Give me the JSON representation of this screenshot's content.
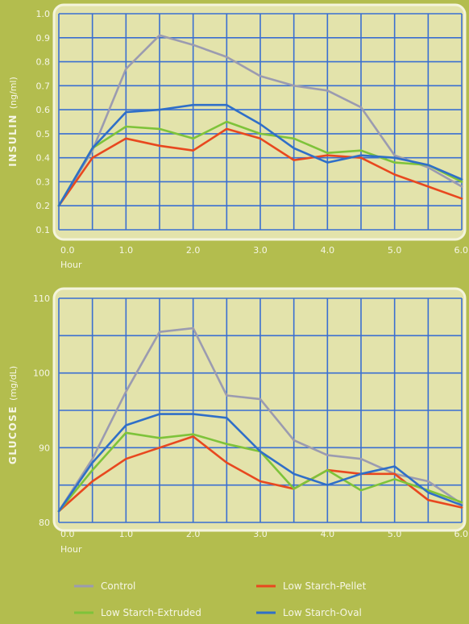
{
  "colors": {
    "background": "#b3bd4e",
    "plot_area": "#e3e3ab",
    "plot_border": "#f4f4dc",
    "grid": "#3a6fd1",
    "text": "#f6f6e6"
  },
  "x_ticks": [
    "0.0",
    "1.0",
    "2.0",
    "3.0",
    "4.0",
    "5.0",
    "6.0"
  ],
  "chart_data": [
    {
      "type": "line",
      "ylabel_bold": "INSULIN",
      "ylabel_unit": "(ng/ml)",
      "xlabel": "Hour",
      "xlim": [
        0,
        6
      ],
      "ylim": [
        0.1,
        1.0
      ],
      "y_ticks": [
        "0.1",
        "0.2",
        "0.3",
        "0.4",
        "0.5",
        "0.6",
        "0.7",
        "0.8",
        "0.9",
        "1.0"
      ],
      "x": [
        0,
        0.5,
        1,
        1.5,
        2,
        2.5,
        3,
        3.5,
        4,
        4.5,
        5,
        5.5,
        6
      ],
      "series": [
        {
          "name": "Control",
          "color": "#9b9bb0",
          "values": [
            0.2,
            0.43,
            0.77,
            0.91,
            0.87,
            0.82,
            0.74,
            0.7,
            0.68,
            0.61,
            0.41,
            0.36,
            0.28
          ]
        },
        {
          "name": "Low Starch-Pellet",
          "color": "#e8481f",
          "values": [
            0.2,
            0.4,
            0.48,
            0.45,
            0.43,
            0.52,
            0.48,
            0.39,
            0.41,
            0.4,
            0.33,
            0.28,
            0.23
          ]
        },
        {
          "name": "Low Starch-Extruded",
          "color": "#7ec33a",
          "values": [
            0.2,
            0.44,
            0.53,
            0.52,
            0.48,
            0.55,
            0.5,
            0.48,
            0.42,
            0.43,
            0.38,
            0.37,
            0.3
          ]
        },
        {
          "name": "Low Starch-Oval",
          "color": "#2f6fc8",
          "values": [
            0.2,
            0.44,
            0.59,
            0.6,
            0.62,
            0.62,
            0.54,
            0.44,
            0.38,
            0.41,
            0.4,
            0.37,
            0.31
          ]
        }
      ]
    },
    {
      "type": "line",
      "ylabel_bold": "GLUCOSE",
      "ylabel_unit": "(mg/dL)",
      "xlabel": "Hour",
      "xlim": [
        0,
        6
      ],
      "ylim": [
        80,
        110
      ],
      "y_ticks": [
        "80",
        "90",
        "100",
        "110"
      ],
      "x": [
        0,
        0.5,
        1,
        1.5,
        2,
        2.5,
        3,
        3.5,
        4,
        4.5,
        5,
        5.5,
        6
      ],
      "series": [
        {
          "name": "Control",
          "color": "#9b9bb0",
          "values": [
            81.5,
            88.5,
            97.5,
            105.5,
            106.0,
            97.0,
            96.5,
            91.0,
            89.0,
            88.5,
            86.5,
            85.5,
            82.5
          ]
        },
        {
          "name": "Low Starch-Pellet",
          "color": "#e8481f",
          "values": [
            81.5,
            85.5,
            88.5,
            90.0,
            91.5,
            88.0,
            85.5,
            84.5,
            87.0,
            86.5,
            86.5,
            83.0,
            82.0
          ]
        },
        {
          "name": "Low Starch-Extruded",
          "color": "#7ec33a",
          "values": [
            81.5,
            87.0,
            92.0,
            91.3,
            91.8,
            90.5,
            89.5,
            84.5,
            87.0,
            84.3,
            85.8,
            84.3,
            82.7
          ]
        },
        {
          "name": "Low Starch-Oval",
          "color": "#2f6fc8",
          "values": [
            81.5,
            88.0,
            93.0,
            94.5,
            94.5,
            94.0,
            89.5,
            86.5,
            85.0,
            86.5,
            87.5,
            84.0,
            82.3
          ]
        }
      ]
    }
  ],
  "legend": [
    {
      "label": "Control",
      "color": "#9b9bb0"
    },
    {
      "label": "Low Starch-Pellet",
      "color": "#e8481f"
    },
    {
      "label": "Low Starch-Extruded",
      "color": "#7ec33a"
    },
    {
      "label": "Low Starch-Oval",
      "color": "#2f6fc8"
    }
  ]
}
